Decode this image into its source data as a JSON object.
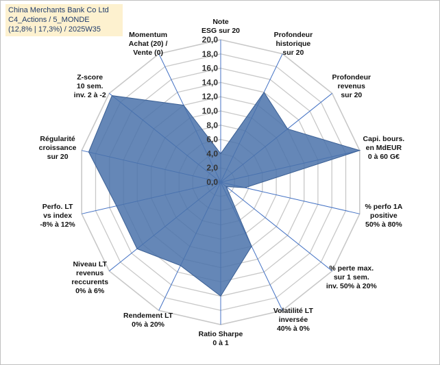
{
  "header": {
    "line1": "China Merchants Bank Co Ltd",
    "line2": "C4_Actions / 5_MONDE",
    "line3": "(12,8% | 17,3%) / 2025W35"
  },
  "colors": {
    "fill": "#4a72aa",
    "grid": "#c8c8c8",
    "spoke": "#4472c4",
    "title_bg": "#fdf1cf"
  },
  "chart_data": {
    "type": "radar",
    "rmin": 0,
    "rmax": 20,
    "ticks": [
      "0,0",
      "2,0",
      "4,0",
      "6,0",
      "8,0",
      "10,0",
      "12,0",
      "14,0",
      "16,0",
      "18,0",
      "20,0"
    ],
    "tick_values": [
      0,
      2,
      4,
      6,
      8,
      10,
      12,
      14,
      16,
      18,
      20
    ],
    "axes": [
      {
        "lines": [
          "Note",
          "ESG sur 20"
        ],
        "value": 4
      },
      {
        "lines": [
          "Profondeur",
          "historique",
          "sur 20"
        ],
        "value": 14
      },
      {
        "lines": [
          "Profondeur",
          "revenus",
          "sur 20"
        ],
        "value": 12
      },
      {
        "lines": [
          "Capi. bours.",
          "en MdEUR",
          "0 à 60 G€"
        ],
        "value": 20
      },
      {
        "lines": [
          "% perfo 1A",
          "positive",
          "50% à 80%"
        ],
        "value": 3.5
      },
      {
        "lines": [
          "% perte max.",
          "sur 1 sem.",
          "inv. 50% à 20%"
        ],
        "value": 1
      },
      {
        "lines": [
          "Volatilité LT",
          "inversée",
          "40% à 0%"
        ],
        "value": 10
      },
      {
        "lines": [
          "Ratio Sharpe",
          "0 à 1"
        ],
        "value": 16
      },
      {
        "lines": [
          "Rendement LT",
          "0% à 20%"
        ],
        "value": 13
      },
      {
        "lines": [
          "Niveau LT",
          "revenus",
          "reccurents",
          "0% à 6%"
        ],
        "value": 15
      },
      {
        "lines": [
          "Perfo. LT",
          "vs index",
          "-8% à 12%"
        ],
        "value": 15
      },
      {
        "lines": [
          "Régularité",
          "croissance",
          "sur 20"
        ],
        "value": 19
      },
      {
        "lines": [
          "Z-score",
          "10 sem.",
          "inv. 2 à -2"
        ],
        "value": 19.5
      },
      {
        "lines": [
          "Momentum",
          "Achat (20) /",
          "Vente (0)"
        ],
        "value": 12
      }
    ]
  }
}
